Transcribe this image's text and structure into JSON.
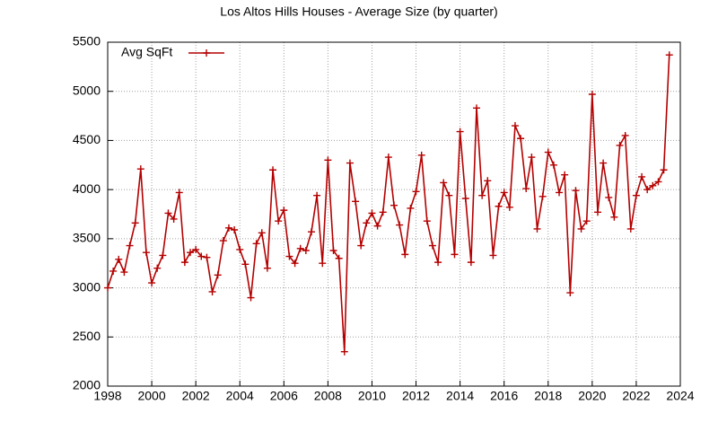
{
  "chart_data": {
    "type": "line",
    "title": "Los Altos Hills Houses - Average Size (by quarter)",
    "x": [
      1998,
      1998.25,
      1998.5,
      1998.75,
      1999,
      1999.25,
      1999.5,
      1999.75,
      2000,
      2000.25,
      2000.5,
      2000.75,
      2001,
      2001.25,
      2001.5,
      2001.75,
      2002,
      2002.25,
      2002.5,
      2002.75,
      2003,
      2003.25,
      2003.5,
      2003.75,
      2004,
      2004.25,
      2004.5,
      2004.75,
      2005,
      2005.25,
      2005.5,
      2005.75,
      2006,
      2006.25,
      2006.5,
      2006.75,
      2007,
      2007.25,
      2007.5,
      2007.75,
      2008,
      2008.25,
      2008.5,
      2008.75,
      2009,
      2009.25,
      2009.5,
      2009.75,
      2010,
      2010.25,
      2010.5,
      2010.75,
      2011,
      2011.25,
      2011.5,
      2011.75,
      2012,
      2012.25,
      2012.5,
      2012.75,
      2013,
      2013.25,
      2013.5,
      2013.75,
      2014,
      2014.25,
      2014.5,
      2014.75,
      2015,
      2015.25,
      2015.5,
      2015.75,
      2016,
      2016.25,
      2016.5,
      2016.75,
      2017,
      2017.25,
      2017.5,
      2017.75,
      2018,
      2018.25,
      2018.5,
      2018.75,
      2019,
      2019.25,
      2019.5,
      2019.75,
      2020,
      2020.25,
      2020.5,
      2020.75,
      2021,
      2021.25,
      2021.5,
      2021.75,
      2022,
      2022.25,
      2022.5,
      2022.75,
      2023,
      2023.25,
      2023.5
    ],
    "series": [
      {
        "name": "Avg SqFt",
        "color": "#b40000",
        "values": [
          3000,
          3170,
          3290,
          3160,
          3430,
          3660,
          4210,
          3360,
          3050,
          3200,
          3330,
          3760,
          3700,
          3970,
          3260,
          3360,
          3390,
          3320,
          3310,
          2960,
          3130,
          3480,
          3610,
          3590,
          3390,
          3240,
          2900,
          3450,
          3560,
          3200,
          4200,
          3680,
          3790,
          3320,
          3250,
          3400,
          3380,
          3570,
          3940,
          3250,
          4300,
          3380,
          3300,
          2350,
          4270,
          3880,
          3430,
          3660,
          3760,
          3630,
          3770,
          4330,
          3840,
          3640,
          3340,
          3810,
          3980,
          4350,
          3680,
          3430,
          3260,
          4070,
          3940,
          3340,
          4590,
          3910,
          3260,
          4830,
          3940,
          4090,
          3330,
          3830,
          3970,
          3820,
          4650,
          4520,
          4010,
          4330,
          3600,
          3930,
          4380,
          4250,
          3970,
          4150,
          2950,
          3990,
          3600,
          3680,
          4970,
          3770,
          4270,
          3920,
          3720,
          4450,
          4550,
          3600,
          3940,
          4130,
          4000,
          4040,
          4080,
          4200,
          5370
        ]
      }
    ],
    "xlim": [
      1998,
      2024
    ],
    "xticks": [
      1998,
      2000,
      2002,
      2004,
      2006,
      2008,
      2010,
      2012,
      2014,
      2016,
      2018,
      2020,
      2022,
      2024
    ],
    "ylim": [
      2000,
      5500
    ],
    "yticks": [
      2000,
      2500,
      3000,
      3500,
      4000,
      4500,
      5000,
      5500
    ],
    "grid": true,
    "legend": "top-left"
  }
}
